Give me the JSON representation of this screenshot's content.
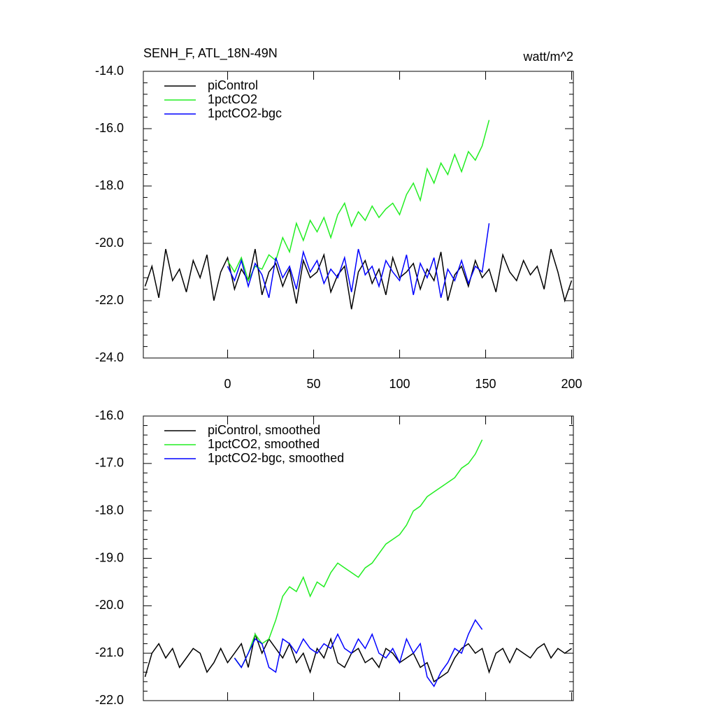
{
  "chart_data": [
    {
      "type": "line",
      "title": "SENH_F, ATL_18N-49N",
      "units": "watt/m^2",
      "x": [
        -48,
        -44,
        -40,
        -36,
        -32,
        -28,
        -24,
        -20,
        -16,
        -12,
        -8,
        -4,
        0,
        4,
        8,
        12,
        16,
        20,
        24,
        28,
        32,
        36,
        40,
        44,
        48,
        52,
        56,
        60,
        64,
        68,
        72,
        76,
        80,
        84,
        88,
        92,
        96,
        100,
        104,
        108,
        112,
        116,
        120,
        124,
        128,
        132,
        136,
        140,
        144,
        148,
        152,
        156,
        160,
        164,
        168,
        172,
        176,
        180,
        184,
        188,
        192,
        196,
        200
      ],
      "xlim": [
        -49,
        201
      ],
      "xticks": [
        0,
        50,
        100,
        150,
        200
      ],
      "xtick_labels": true,
      "ylim": [
        -24,
        -14
      ],
      "yticks": [
        {
          "value": -24,
          "label": "-24.0"
        },
        {
          "value": -22,
          "label": "-22.0"
        },
        {
          "value": -20,
          "label": "-20.0"
        },
        {
          "value": -18,
          "label": "-18.0"
        },
        {
          "value": -16,
          "label": "-16.0"
        },
        {
          "value": -14,
          "label": "-14.0"
        }
      ],
      "series": [
        {
          "name": "piControl",
          "color": "#000000",
          "values": [
            -21.5,
            -20.8,
            -21.9,
            -20.2,
            -21.3,
            -20.9,
            -21.7,
            -20.6,
            -21.2,
            -20.4,
            -22.0,
            -21.0,
            -20.5,
            -21.6,
            -20.9,
            -21.3,
            -20.2,
            -21.8,
            -21.0,
            -20.7,
            -21.5,
            -20.9,
            -22.1,
            -20.6,
            -21.2,
            -21.0,
            -20.4,
            -21.7,
            -21.1,
            -20.8,
            -22.3,
            -21.0,
            -20.6,
            -21.4,
            -20.9,
            -21.8,
            -20.5,
            -21.2,
            -21.0,
            -20.7,
            -21.6,
            -20.9,
            -21.3,
            -20.3,
            -22.0,
            -21.1,
            -20.8,
            -21.5,
            -20.6,
            -21.2,
            -20.9,
            -21.7,
            -20.4,
            -21.0,
            -21.3,
            -20.6,
            -21.1,
            -20.8,
            -21.6,
            -20.2,
            -21.0,
            -22.0,
            -21.3
          ]
        },
        {
          "name": "1pctCO2",
          "color": "#22ee22",
          "values": [
            null,
            null,
            null,
            null,
            null,
            null,
            null,
            null,
            null,
            null,
            null,
            null,
            -20.6,
            -21.0,
            -20.5,
            -21.3,
            -20.8,
            -20.9,
            -20.4,
            -20.6,
            -19.8,
            -20.3,
            -19.3,
            -19.9,
            -19.2,
            -19.6,
            -19.1,
            -19.8,
            -19.0,
            -18.6,
            -19.4,
            -18.9,
            -19.2,
            -18.7,
            -19.1,
            -18.8,
            -18.6,
            -19.0,
            -18.3,
            -17.9,
            -18.5,
            -17.4,
            -17.9,
            -17.2,
            -17.6,
            -16.9,
            -17.5,
            -16.8,
            -17.1,
            -16.6,
            -15.7,
            null,
            null,
            null,
            null,
            null,
            null,
            null,
            null,
            null,
            null,
            null,
            null
          ]
        },
        {
          "name": "1pctCO2-bgc",
          "color": "#0000ff",
          "values": [
            null,
            null,
            null,
            null,
            null,
            null,
            null,
            null,
            null,
            null,
            null,
            null,
            -20.8,
            -21.3,
            -20.6,
            -21.5,
            -20.7,
            -21.1,
            -21.9,
            -20.5,
            -21.2,
            -20.8,
            -21.6,
            -20.3,
            -21.0,
            -20.6,
            -21.4,
            -20.9,
            -21.2,
            -20.5,
            -21.7,
            -20.2,
            -21.1,
            -20.8,
            -21.5,
            -20.6,
            -21.0,
            -21.3,
            -20.4,
            -21.8,
            -20.7,
            -21.2,
            -20.5,
            -21.9,
            -20.9,
            -21.3,
            -20.6,
            -21.4,
            -20.8,
            -21.0,
            -19.3,
            null,
            null,
            null,
            null,
            null,
            null,
            null,
            null,
            null,
            null,
            null,
            null
          ]
        }
      ]
    },
    {
      "type": "line",
      "x": [
        -48,
        -44,
        -40,
        -36,
        -32,
        -28,
        -24,
        -20,
        -16,
        -12,
        -8,
        -4,
        0,
        4,
        8,
        12,
        16,
        20,
        24,
        28,
        32,
        36,
        40,
        44,
        48,
        52,
        56,
        60,
        64,
        68,
        72,
        76,
        80,
        84,
        88,
        92,
        96,
        100,
        104,
        108,
        112,
        116,
        120,
        124,
        128,
        132,
        136,
        140,
        144,
        148,
        152,
        156,
        160,
        164,
        168,
        172,
        176,
        180,
        184,
        188,
        192,
        196,
        200
      ],
      "xlim": [
        -49,
        201
      ],
      "xticks": [
        0,
        50,
        100,
        150,
        200
      ],
      "xtick_labels": false,
      "ylim": [
        -22,
        -16
      ],
      "yticks": [
        {
          "value": -22,
          "label": "-22.0"
        },
        {
          "value": -21,
          "label": "-21.0"
        },
        {
          "value": -20,
          "label": "-20.0"
        },
        {
          "value": -19,
          "label": "-19.0"
        },
        {
          "value": -18,
          "label": "-18.0"
        },
        {
          "value": -17,
          "label": "-17.0"
        },
        {
          "value": -16,
          "label": "-16.0"
        }
      ],
      "series": [
        {
          "name": "piControl, smoothed",
          "color": "#000000",
          "values": [
            -21.5,
            -21.0,
            -20.8,
            -21.1,
            -20.9,
            -21.3,
            -21.1,
            -20.9,
            -21.0,
            -21.4,
            -21.2,
            -20.9,
            -21.2,
            -21.0,
            -20.8,
            -21.3,
            -20.6,
            -21.0,
            -20.7,
            -20.9,
            -21.1,
            -20.8,
            -21.2,
            -21.0,
            -21.4,
            -20.9,
            -21.1,
            -20.7,
            -21.2,
            -21.3,
            -21.0,
            -20.9,
            -21.2,
            -21.1,
            -21.3,
            -20.9,
            -21.0,
            -21.2,
            -21.1,
            -21.0,
            -21.3,
            -21.2,
            -21.6,
            -21.5,
            -21.4,
            -21.1,
            -20.9,
            -20.8,
            -21.0,
            -20.9,
            -21.4,
            -21.0,
            -20.9,
            -21.2,
            -20.9,
            -21.0,
            -21.1,
            -20.9,
            -20.8,
            -21.1,
            -20.9,
            -21.0,
            -20.9
          ]
        },
        {
          "name": "1pctCO2, smoothed",
          "color": "#22ee22",
          "values": [
            null,
            null,
            null,
            null,
            null,
            null,
            null,
            null,
            null,
            null,
            null,
            null,
            null,
            -21.1,
            -21.3,
            -21.0,
            -20.6,
            -20.8,
            -20.7,
            -20.3,
            -19.8,
            -19.6,
            -19.7,
            -19.4,
            -19.8,
            -19.5,
            -19.6,
            -19.3,
            -19.1,
            -19.2,
            -19.3,
            -19.4,
            -19.2,
            -19.1,
            -18.9,
            -18.7,
            -18.6,
            -18.5,
            -18.3,
            -18.0,
            -17.9,
            -17.7,
            -17.6,
            -17.5,
            -17.4,
            -17.3,
            -17.1,
            -17.0,
            -16.8,
            -16.5,
            null,
            null,
            null,
            null,
            null,
            null,
            null,
            null,
            null,
            null,
            null,
            null,
            null
          ]
        },
        {
          "name": "1pctCO2-bgc, smoothed",
          "color": "#0000ff",
          "values": [
            null,
            null,
            null,
            null,
            null,
            null,
            null,
            null,
            null,
            null,
            null,
            null,
            null,
            -21.1,
            -21.3,
            -21.0,
            -20.7,
            -20.8,
            -21.3,
            -21.4,
            -20.7,
            -20.8,
            -21.0,
            -20.7,
            -20.9,
            -21.0,
            -20.8,
            -20.9,
            -20.6,
            -20.9,
            -21.0,
            -20.7,
            -20.9,
            -20.6,
            -21.0,
            -21.1,
            -20.9,
            -21.2,
            -20.7,
            -21.0,
            -20.8,
            -21.5,
            -21.7,
            -21.4,
            -21.2,
            -20.9,
            -21.0,
            -20.6,
            -20.3,
            -20.5,
            null,
            null,
            null,
            null,
            null,
            null,
            null,
            null,
            null,
            null,
            null,
            null,
            null
          ]
        }
      ]
    }
  ]
}
